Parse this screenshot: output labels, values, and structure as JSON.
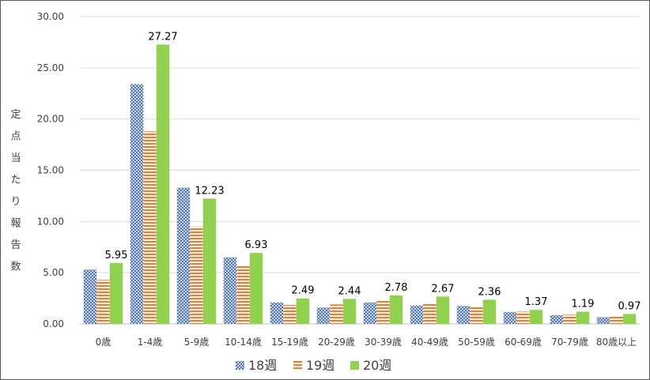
{
  "chart_data": {
    "type": "bar",
    "title": "",
    "xlabel": "",
    "ylabel": "定点当たり報告数",
    "ylim": [
      0,
      30
    ],
    "yticks": [
      "0.00",
      "5.00",
      "10.00",
      "15.00",
      "20.00",
      "25.00",
      "30.00"
    ],
    "grid": true,
    "legend_position": "bottom",
    "categories": [
      "0歳",
      "1-4歳",
      "5-9歳",
      "10-14歳",
      "15-19歳",
      "20-29歳",
      "30-39歳",
      "40-49歳",
      "50-59歳",
      "60-69歳",
      "70-79歳",
      "80歳以上"
    ],
    "series": [
      {
        "name": "18週",
        "color": "#4a6fa5",
        "pattern": "crosshatch",
        "values": [
          5.3,
          23.4,
          13.3,
          6.5,
          2.1,
          1.6,
          2.1,
          1.8,
          1.75,
          1.15,
          0.85,
          0.65
        ]
      },
      {
        "name": "19週",
        "color": "#ed7d31",
        "pattern": "horizontal-lines",
        "values": [
          4.3,
          18.8,
          9.5,
          5.7,
          1.85,
          1.9,
          2.3,
          2.05,
          1.65,
          1.2,
          0.9,
          0.7
        ]
      },
      {
        "name": "20週",
        "color": "#92d050",
        "pattern": "solid",
        "values": [
          5.95,
          27.27,
          12.23,
          6.93,
          2.49,
          2.44,
          2.78,
          2.67,
          2.36,
          1.37,
          1.19,
          0.97
        ],
        "labels": [
          "5.95",
          "27.27",
          "12.23",
          "6.93",
          "2.49",
          "2.44",
          "2.78",
          "2.67",
          "2.36",
          "1.37",
          "1.19",
          "0.97"
        ]
      }
    ]
  }
}
